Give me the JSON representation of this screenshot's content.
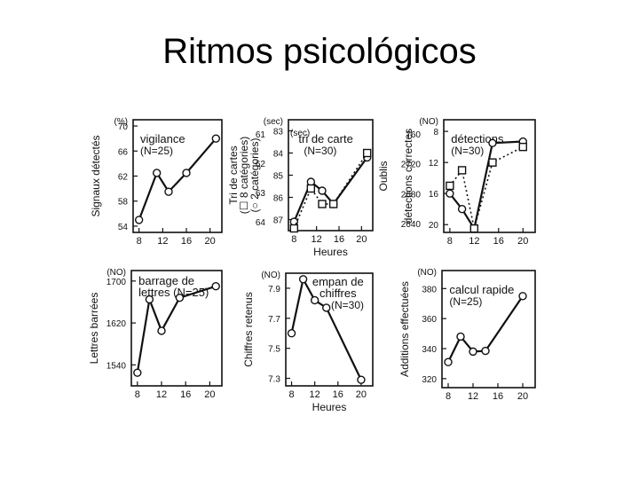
{
  "slide": {
    "title": "Ritmos psicológicos"
  },
  "colors": {
    "ink": "#111111",
    "background": "#ffffff"
  },
  "chart_data": [
    {
      "type": "line",
      "title": "vigilance",
      "subtitle": "(N=25)",
      "ylabel": "Signaux détectés",
      "yunit": "(%)",
      "yticks": [
        54,
        58,
        62,
        66,
        70
      ],
      "ylim": [
        53,
        71
      ],
      "xticks": [
        8,
        12,
        16,
        20
      ],
      "xlim": [
        7,
        22
      ],
      "xlabel": "",
      "series": [
        {
          "marker": "circle",
          "line": "solid",
          "x": [
            8,
            11,
            13,
            16,
            21
          ],
          "y": [
            55,
            62.5,
            59.5,
            62.5,
            68
          ]
        }
      ]
    },
    {
      "type": "line",
      "title": "tri de carte",
      "subtitle": "(N=30)",
      "ylabel": "Tri de cartes",
      "ylabel2": "(☐ 8 catégories)",
      "ylabel3": "(○ 2 catégories)",
      "yunit": "(sec)",
      "yunit2": "(sec)",
      "yticks": [
        83,
        84,
        85,
        86,
        87
      ],
      "yticks2": [
        61,
        62,
        63,
        64
      ],
      "ylim": [
        87.5,
        82.5
      ],
      "inverted": true,
      "xticks": [
        8,
        12,
        16,
        20
      ],
      "xlim": [
        7,
        22
      ],
      "xlabel": "Heures",
      "series": [
        {
          "name": "2 catégories",
          "marker": "circle",
          "line": "solid",
          "x": [
            8,
            11,
            13,
            15,
            21
          ],
          "y": [
            87.1,
            85.3,
            85.7,
            86.3,
            84.2
          ]
        },
        {
          "name": "8 catégories",
          "marker": "square",
          "line": "dotted",
          "x": [
            8,
            11,
            13,
            15,
            21
          ],
          "y": [
            87.4,
            85.6,
            86.3,
            86.3,
            84.0
          ]
        }
      ]
    },
    {
      "type": "line",
      "title": "détections",
      "subtitle": "(N=30)",
      "ylabel": "Oublis",
      "ylabel2": "détections correctes",
      "yunit": "(NO)",
      "yticks": [
        8,
        12,
        16,
        20
      ],
      "yticks2": [
        760,
        2720,
        2680,
        2640
      ],
      "ylim": [
        21,
        6.5
      ],
      "inverted": true,
      "xticks": [
        8,
        12,
        16,
        20
      ],
      "xlim": [
        7,
        22
      ],
      "xlabel": "",
      "series": [
        {
          "name": "oublis",
          "marker": "circle",
          "line": "solid",
          "x": [
            8,
            10,
            12,
            15,
            20
          ],
          "y": [
            16,
            18,
            20.5,
            9.5,
            9.3
          ]
        },
        {
          "name": "détections correctes",
          "marker": "square",
          "line": "dotted",
          "x": [
            8,
            10,
            12,
            15,
            20
          ],
          "y": [
            15,
            13,
            20.5,
            12,
            10
          ]
        }
      ]
    },
    {
      "type": "line",
      "title": "barrage de",
      "title2": "lettres (N=25)",
      "ylabel": "Lettres barrées",
      "yunit": "(NO)",
      "yticks": [
        1540,
        1620,
        1700
      ],
      "ylim": [
        1500,
        1720
      ],
      "xticks": [
        8,
        12,
        16,
        20
      ],
      "xlim": [
        7,
        22
      ],
      "xlabel": "",
      "series": [
        {
          "marker": "circle",
          "line": "solid",
          "x": [
            8,
            10,
            12,
            15,
            21
          ],
          "y": [
            1525,
            1665,
            1605,
            1668,
            1690
          ]
        }
      ]
    },
    {
      "type": "line",
      "title": "empan de",
      "title2": "chiffres",
      "subtitle": "(N=30)",
      "ylabel": "Chiffres retenus",
      "yunit": "(NO)",
      "yticks": [
        7.3,
        7.5,
        7.7,
        7.9
      ],
      "ylim": [
        7.25,
        8.0
      ],
      "xticks": [
        8,
        12,
        16,
        20
      ],
      "xlim": [
        7,
        22
      ],
      "xlabel": "Heures",
      "series": [
        {
          "marker": "circle",
          "line": "solid",
          "x": [
            8,
            10,
            12,
            14,
            20
          ],
          "y": [
            7.6,
            7.96,
            7.82,
            7.77,
            7.29
          ]
        }
      ]
    },
    {
      "type": "line",
      "title": "calcul rapide",
      "subtitle": "(N=25)",
      "ylabel": "Additions effectuées",
      "yunit": "(NO)",
      "yticks": [
        320,
        340,
        360,
        380
      ],
      "ylim": [
        314,
        392
      ],
      "xticks": [
        8,
        12,
        16,
        20
      ],
      "xlim": [
        7,
        22
      ],
      "xlabel": "",
      "series": [
        {
          "marker": "circle",
          "line": "solid",
          "x": [
            8,
            10,
            12,
            14,
            20
          ],
          "y": [
            331,
            348,
            338,
            338.5,
            375
          ]
        }
      ]
    }
  ]
}
